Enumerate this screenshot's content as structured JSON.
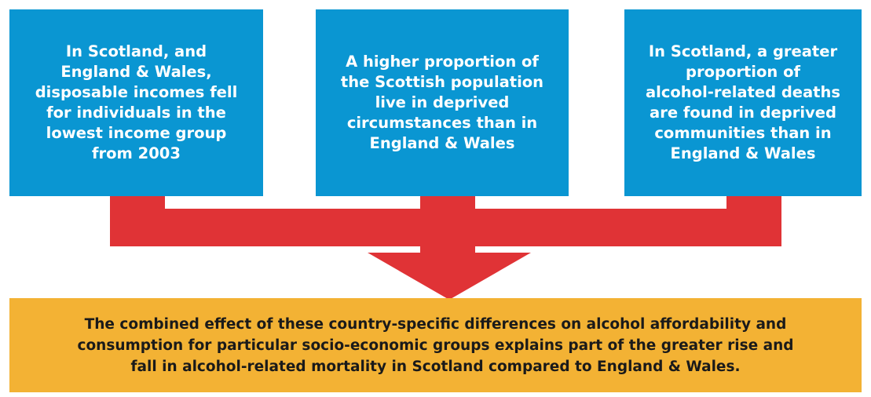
{
  "boxes": [
    {
      "lines": [
        "In Scotland, and",
        "England & Wales,",
        "disposable incomes fell",
        "for individuals in the",
        "lowest income group",
        "from 2003"
      ]
    },
    {
      "lines": [
        "A higher proportion of",
        "the Scottish population",
        "live in deprived",
        "circumstances than in",
        "England & Wales"
      ]
    },
    {
      "lines": [
        "In Scotland, a greater",
        "proportion of",
        "alcohol-related deaths",
        "are found in deprived",
        "communities than in",
        "England & Wales"
      ]
    }
  ],
  "conclusion": {
    "lines": [
      "The combined effect of these country-specific differences on alcohol affordability and",
      "consumption for particular socio-economic groups explains part of the greater rise and",
      "fall in alcohol-related mortality in Scotland compared to England & Wales."
    ]
  }
}
